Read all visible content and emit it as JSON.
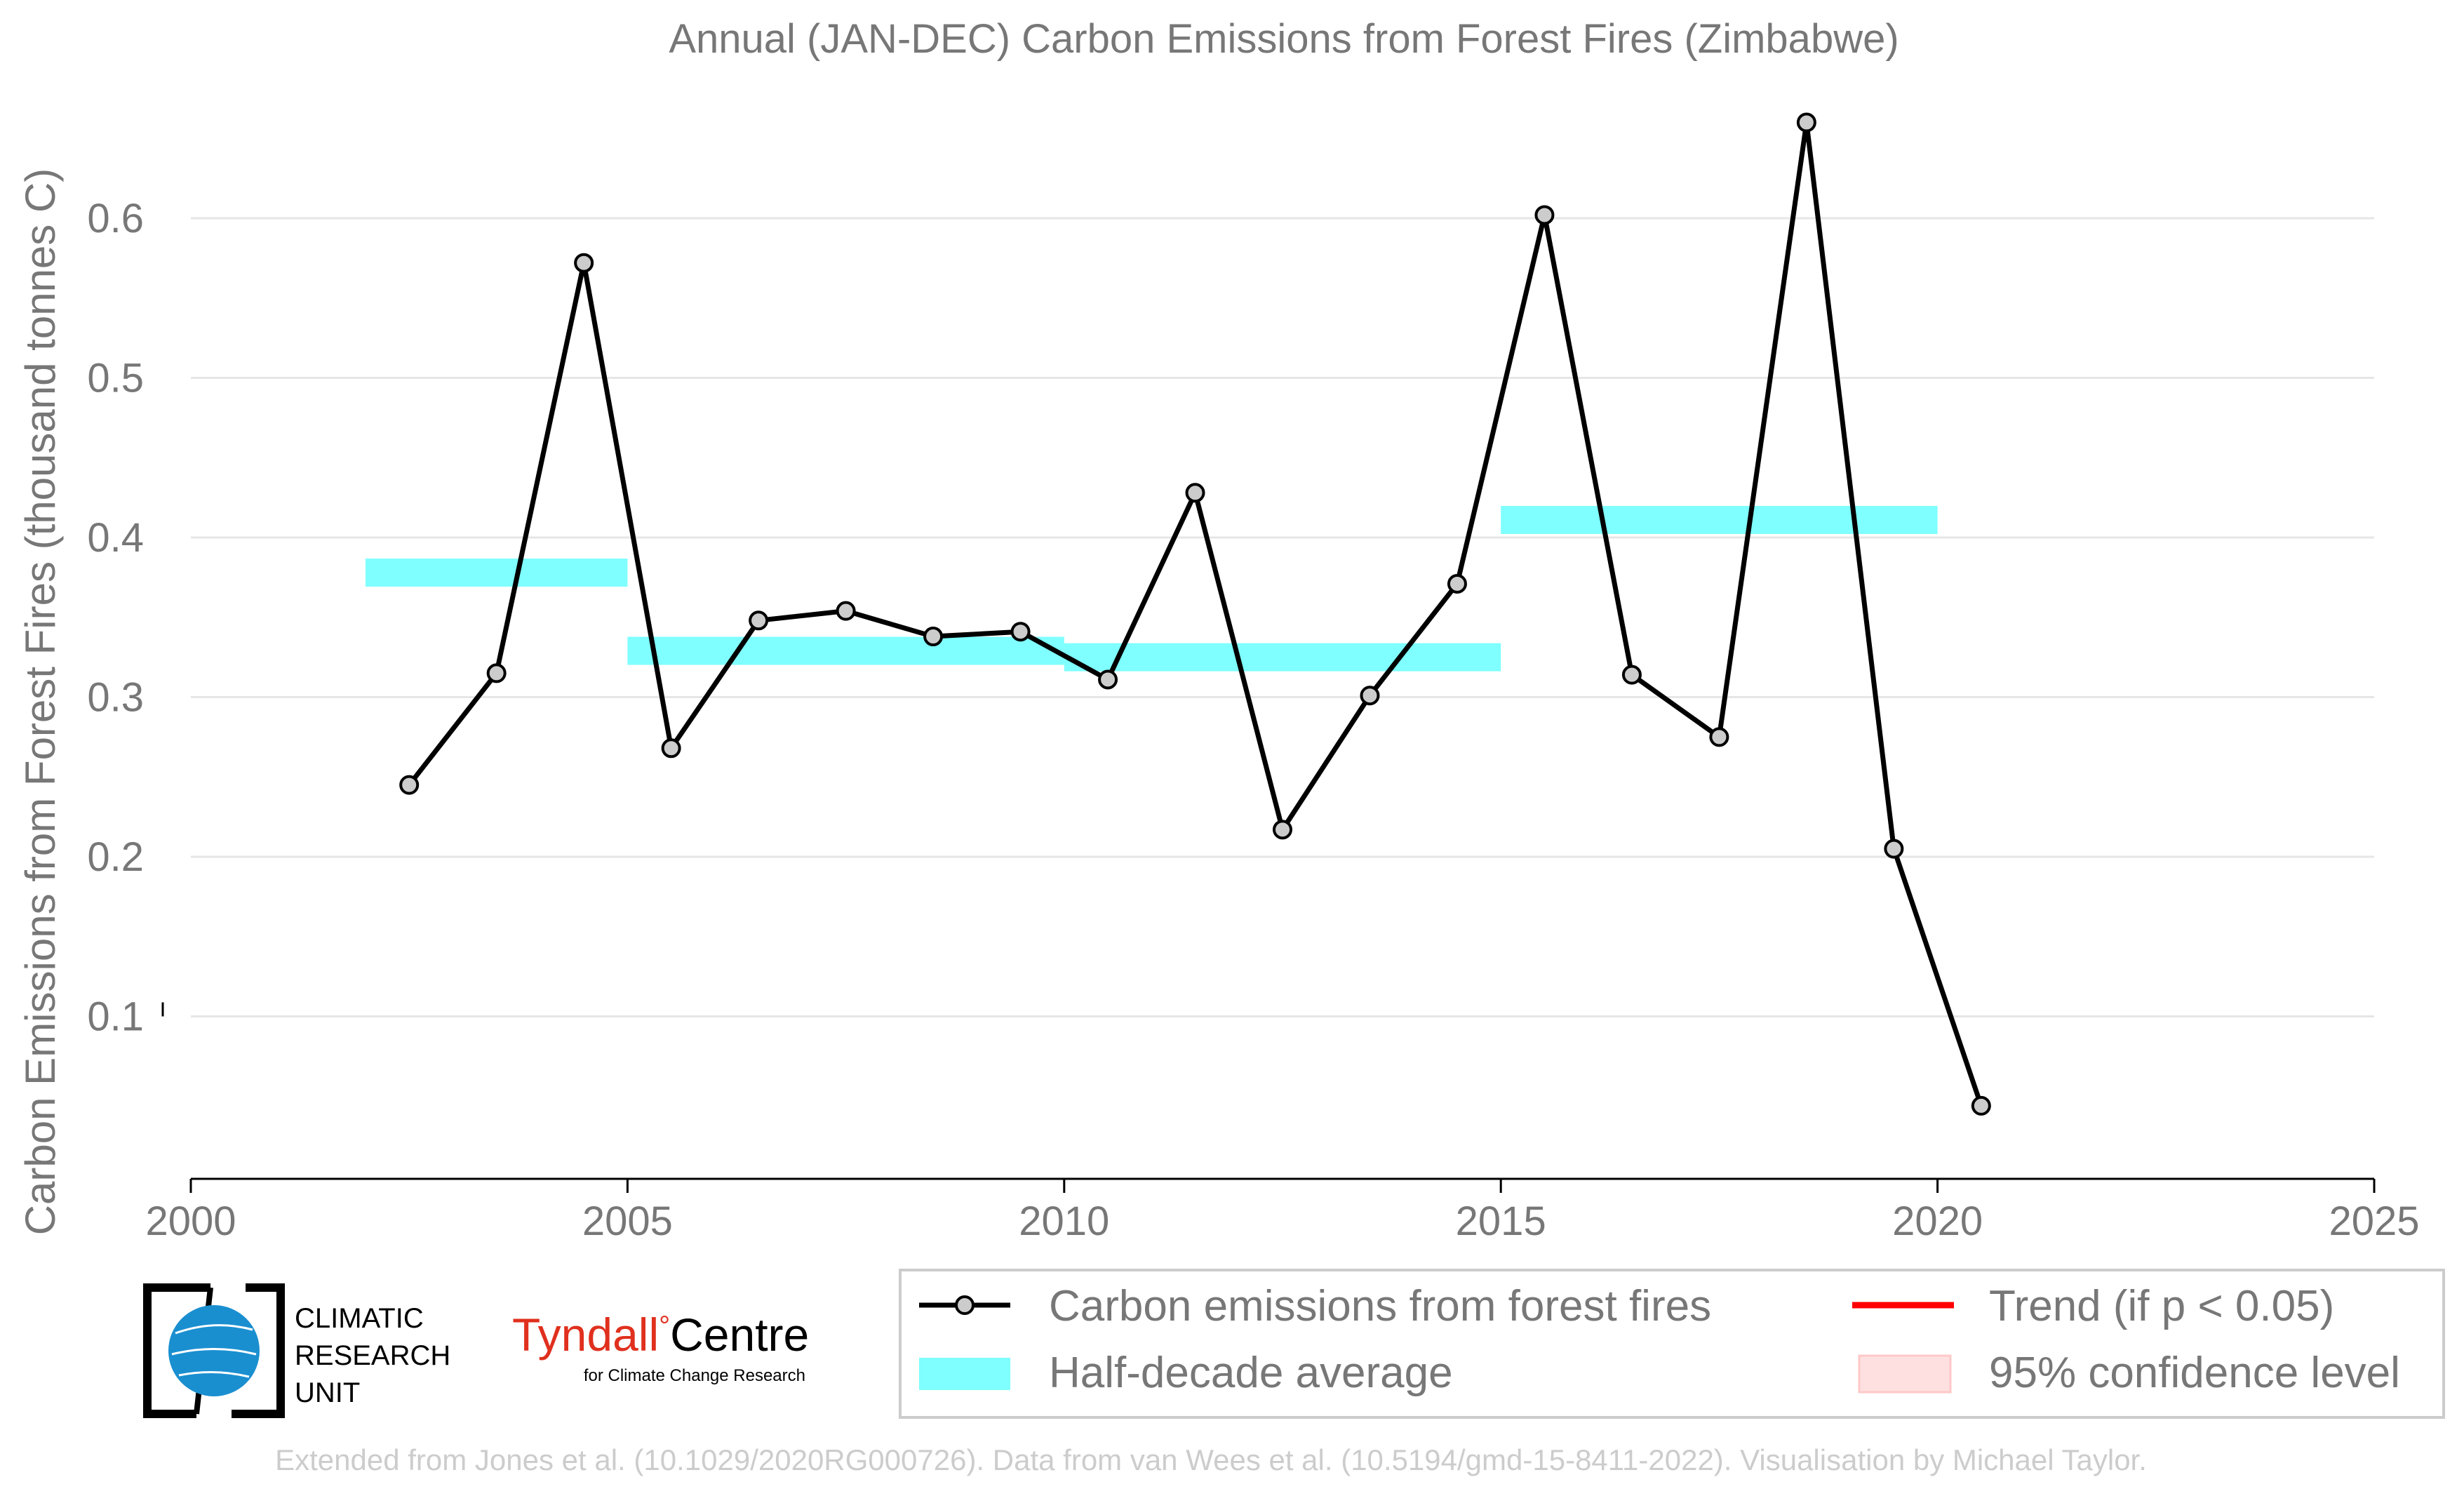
{
  "chart_data": {
    "type": "line",
    "title": "Annual (JAN-DEC) Carbon Emissions from Forest Fires (Zimbabwe)",
    "ylabel": "Carbon Emissions from Forest Fires (thousand tonnes C)",
    "xlabel": "",
    "xlim": [
      2000,
      2025
    ],
    "ylim": [
      0,
      0.68
    ],
    "x_ticks": [
      2000,
      2005,
      2010,
      2015,
      2020,
      2025
    ],
    "x_tick_labels": [
      "2000",
      "2005",
      "2010",
      "2015",
      "2020",
      "2025"
    ],
    "y_ticks": [
      0.1,
      0.2,
      0.3,
      0.4,
      0.5,
      0.6
    ],
    "y_tick_labels": [
      "0.1",
      "0.2",
      "0.3",
      "0.4",
      "0.5",
      "0.6"
    ],
    "grid": true,
    "series": [
      {
        "name": "Carbon emissions from forest fires",
        "color": "#000000",
        "x": [
          2002.5,
          2003.5,
          2004.5,
          2005.5,
          2006.5,
          2007.5,
          2008.5,
          2009.5,
          2010.5,
          2011.5,
          2012.5,
          2013.5,
          2014.5,
          2015.5,
          2016.5,
          2017.5,
          2018.5,
          2019.5,
          2020.5
        ],
        "values": [
          0.245,
          0.315,
          0.572,
          0.268,
          0.348,
          0.354,
          0.338,
          0.341,
          0.311,
          0.428,
          0.217,
          0.301,
          0.371,
          0.602,
          0.314,
          0.275,
          0.66,
          0.205,
          0.044
        ]
      }
    ],
    "half_decade_averages": {
      "name": "Half-decade average",
      "color": "#7fffff",
      "segments": [
        {
          "x0": 2002,
          "x1": 2005,
          "value": 0.378
        },
        {
          "x0": 2005,
          "x1": 2010,
          "value": 0.329
        },
        {
          "x0": 2010,
          "x1": 2015,
          "value": 0.325
        },
        {
          "x0": 2015,
          "x1": 2020,
          "value": 0.411
        }
      ]
    },
    "legend": {
      "placement": "bottom-right",
      "entries": [
        {
          "label": "Carbon emissions from forest fires",
          "color": "#000000",
          "kind": "line-marker"
        },
        {
          "label": "Trend (if p < 0.05)",
          "color": "#ff0000",
          "kind": "line"
        },
        {
          "label": "Half-decade average",
          "color": "#7fffff",
          "kind": "band"
        },
        {
          "label": "95% confidence level",
          "color": "#ffe0e0",
          "kind": "patch"
        }
      ]
    }
  },
  "logos": {
    "cru_lines": [
      "CLIMATIC",
      "RESEARCH",
      "UNIT"
    ],
    "tyndall_main": "Tyndall",
    "tyndall_centre": "Centre",
    "tyndall_sub": "for Climate Change Research"
  },
  "footer": "Extended from Jones et al. (10.1029/2020RG000726). Data from van Wees et al. (10.5194/gmd-15-8411-2022). Visualisation by Michael Taylor."
}
